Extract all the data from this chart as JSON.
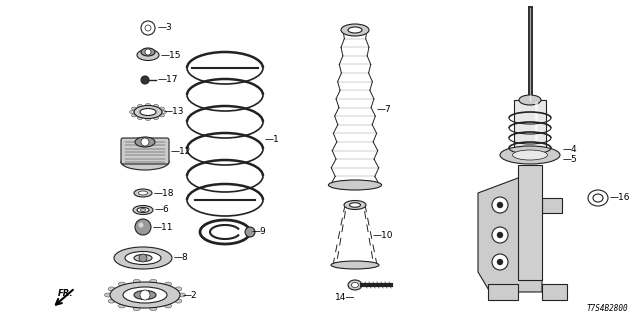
{
  "background_color": "#ffffff",
  "diagram_code": "T7S4B2800",
  "line_color": "#222222",
  "gray_light": "#cccccc",
  "gray_mid": "#999999",
  "gray_dark": "#555555"
}
